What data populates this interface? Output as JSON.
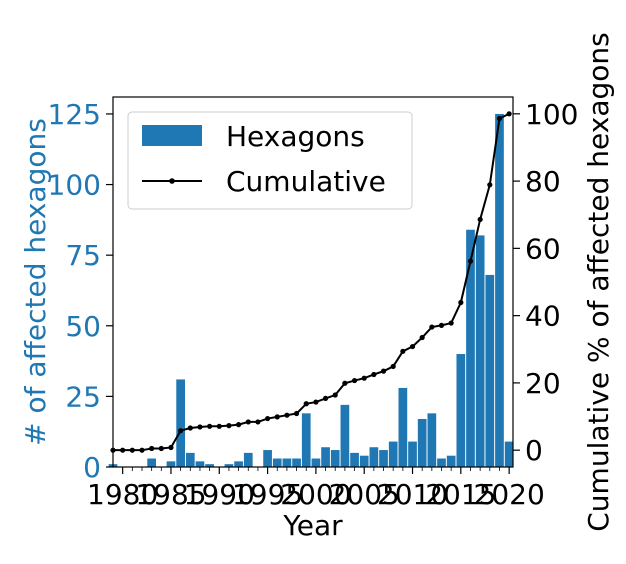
{
  "chart_data": {
    "type": "bar",
    "xlabel": "Year",
    "ylabel_left": "# of affected hexagons",
    "ylabel_right": "Cumulative % of affected hexagons",
    "colors": {
      "bars": "#1f77b4",
      "cumulative": "#000000",
      "left_axis": "#1f77b4"
    },
    "xlim": [
      1979,
      2020.4
    ],
    "ylim_left": [
      0,
      131
    ],
    "ylim_right": [
      -5,
      105
    ],
    "x_ticks": [
      1980,
      1985,
      1990,
      1995,
      2000,
      2005,
      2010,
      2015,
      2020
    ],
    "y_left_ticks": [
      0,
      25,
      50,
      75,
      100,
      125
    ],
    "y_right_ticks": [
      0,
      20,
      40,
      60,
      80,
      100
    ],
    "legend": {
      "placement": "upper-left",
      "entries": [
        "Hexagons",
        "Cumulative"
      ]
    },
    "x": [
      1979,
      1980,
      1981,
      1982,
      1983,
      1984,
      1985,
      1986,
      1987,
      1988,
      1989,
      1990,
      1991,
      1992,
      1993,
      1994,
      1995,
      1996,
      1997,
      1998,
      1999,
      2000,
      2001,
      2002,
      2003,
      2004,
      2005,
      2006,
      2007,
      2008,
      2009,
      2010,
      2011,
      2012,
      2013,
      2014,
      2015,
      2016,
      2017,
      2018,
      2019,
      2020
    ],
    "series": [
      {
        "name": "Hexagons",
        "axis": "left",
        "values": [
          1,
          0,
          0,
          0,
          3,
          0,
          2,
          31,
          5,
          2,
          1,
          0,
          1,
          2,
          5,
          0,
          6,
          3,
          3,
          3,
          19,
          3,
          7,
          6,
          22,
          5,
          4,
          7,
          6,
          9,
          28,
          9,
          17,
          19,
          3,
          4,
          40,
          84,
          82,
          68,
          125,
          9
        ]
      },
      {
        "name": "Cumulative",
        "axis": "right",
        "values": [
          0,
          0,
          0,
          0,
          0.5,
          0.5,
          0.8,
          5.8,
          6.6,
          6.9,
          7.1,
          7.1,
          7.3,
          7.6,
          8.4,
          8.4,
          9.4,
          9.9,
          10.4,
          10.9,
          13.8,
          14.3,
          15.4,
          16.4,
          19.9,
          20.7,
          21.4,
          22.5,
          23.5,
          24.9,
          29.4,
          30.8,
          33.5,
          36.6,
          37.1,
          37.8,
          43.9,
          56.2,
          68.6,
          78.9,
          98.6,
          100
        ]
      }
    ]
  }
}
